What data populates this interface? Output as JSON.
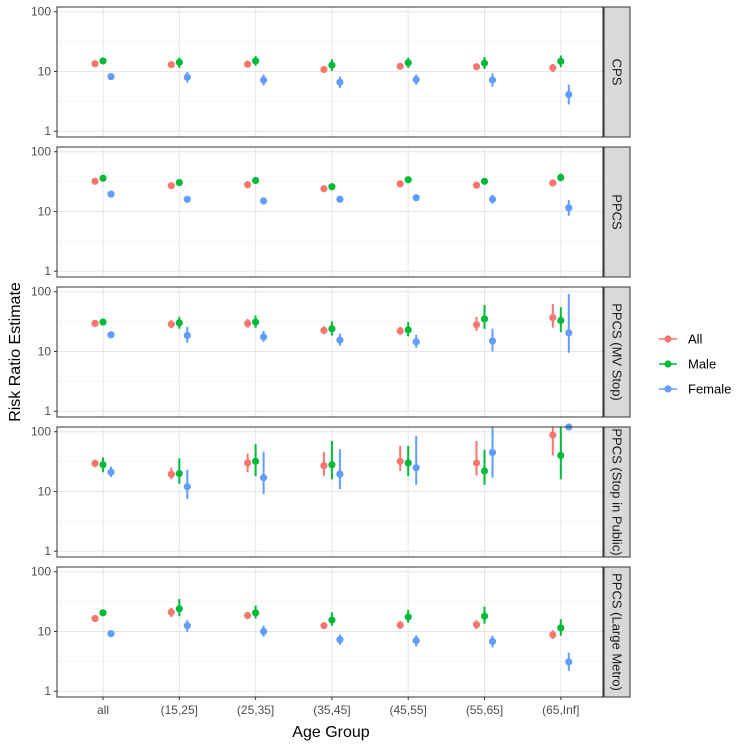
{
  "chart_data": {
    "type": "scatter",
    "subtype": "point-range, faceted",
    "xlabel": "Age Group",
    "ylabel": "Risk Ratio Estimate",
    "yscale": "log10",
    "ylim": [
      0.8,
      120
    ],
    "yticks": [
      1,
      10,
      100
    ],
    "ytick_labels": [
      "1",
      "10",
      "100"
    ],
    "categories": [
      "all",
      "(15,25]",
      "(25,35]",
      "(35,45]",
      "(45,55]",
      "(55,65]",
      "(65,Inf]"
    ],
    "legend": {
      "position": "right",
      "entries": [
        {
          "name": "All",
          "color": "#F8766D"
        },
        {
          "name": "Male",
          "color": "#00BA38"
        },
        {
          "name": "Female",
          "color": "#619CFF"
        }
      ]
    },
    "facets": [
      {
        "label": "CPS",
        "series": [
          {
            "name": "All",
            "values": [
              13.5,
              13,
              13.2,
              10.8,
              12.2,
              12,
              11.5
            ],
            "lower": [
              12.5,
              11.8,
              12.2,
              9.5,
              11,
              10.5,
              9.8
            ],
            "upper": [
              14.5,
              14.3,
              14.3,
              12.2,
              13.4,
              13.5,
              13.3
            ]
          },
          {
            "name": "Male",
            "values": [
              15,
              14.2,
              15,
              12.8,
              14,
              13.8,
              14.8
            ],
            "lower": [
              14,
              11.5,
              12.5,
              10.2,
              11.5,
              11,
              11.8
            ],
            "upper": [
              16,
              17,
              18,
              16,
              17,
              17.5,
              18.5
            ]
          },
          {
            "name": "Female",
            "values": [
              8.2,
              8,
              7.2,
              6.6,
              7.3,
              7.2,
              4.1
            ],
            "lower": [
              7.6,
              6.5,
              5.8,
              5.3,
              6,
              5.6,
              2.8
            ],
            "upper": [
              8.9,
              9.8,
              8.9,
              8.2,
              8.9,
              9.3,
              6
            ]
          }
        ]
      },
      {
        "label": "PPCS",
        "series": [
          {
            "name": "All",
            "values": [
              32,
              27,
              28,
              24,
              29,
              27.5,
              30
            ],
            "lower": [
              30,
              25.5,
              26,
              22,
              27,
              25,
              27
            ],
            "upper": [
              34,
              28.5,
              30,
              26,
              31,
              30,
              33
            ]
          },
          {
            "name": "Male",
            "values": [
              36,
              30.5,
              33,
              26,
              34,
              32,
              37
            ],
            "lower": [
              33.5,
              28.5,
              31,
              24,
              32,
              30,
              32
            ],
            "upper": [
              38.5,
              32.5,
              35,
              28,
              36,
              34,
              43
            ]
          },
          {
            "name": "Female",
            "values": [
              19.5,
              16,
              15,
              16,
              17,
              16,
              11.5
            ],
            "lower": [
              18.5,
              15,
              14,
              15,
              16,
              13.5,
              8.5
            ],
            "upper": [
              20.5,
              17,
              16,
              17,
              18,
              19,
              15.5
            ]
          }
        ]
      },
      {
        "label": "PPCS (MV Stop)",
        "series": [
          {
            "name": "All",
            "values": [
              29.5,
              28.5,
              29.5,
              22.5,
              22,
              28,
              37
            ],
            "lower": [
              27.5,
              24.5,
              25,
              19.5,
              19,
              22,
              25
            ],
            "upper": [
              31.5,
              33.5,
              35,
              26.5,
              26,
              38,
              62
            ]
          },
          {
            "name": "Male",
            "values": [
              31,
              30,
              31,
              24,
              23,
              35,
              33
            ],
            "lower": [
              29,
              24,
              25,
              18.5,
              18,
              24,
              21
            ],
            "upper": [
              33,
              38,
              40,
              32,
              31,
              60,
              55
            ]
          },
          {
            "name": "Female",
            "values": [
              19,
              18.5,
              17.5,
              15.5,
              14.5,
              15,
              20.5
            ],
            "lower": [
              17.5,
              14,
              14.5,
              12.5,
              11.5,
              10,
              9.5
            ],
            "upper": [
              20.5,
              26,
              22,
              20,
              19,
              24,
              92
            ]
          }
        ]
      },
      {
        "label": "PPCS (Stop in Public)",
        "series": [
          {
            "name": "All",
            "values": [
              29.5,
              19.5,
              30,
              27,
              32,
              30,
              88
            ],
            "lower": [
              25.5,
              16,
              21,
              18,
              22,
              18.5,
              40
            ],
            "upper": [
              34,
              25,
              43,
              46,
              58,
              70,
              120
            ]
          },
          {
            "name": "Male",
            "values": [
              28,
              20,
              32,
              28,
              30,
              22,
              40
            ],
            "lower": [
              21,
              13.5,
              18,
              16,
              18,
              13,
              16
            ],
            "upper": [
              37,
              36,
              62,
              70,
              58,
              50,
              120
            ]
          },
          {
            "name": "Female",
            "values": [
              21,
              12,
              17,
              19.5,
              25,
              45,
              120
            ],
            "lower": [
              17.5,
              7.5,
              9,
              11,
              13,
              17,
              110
            ],
            "upper": [
              26,
              23,
              46,
              51,
              85,
              120,
              120
            ]
          }
        ]
      },
      {
        "label": "PPCS (Large Metro)",
        "series": [
          {
            "name": "All",
            "values": [
              16.5,
              21,
              18.5,
              12.5,
              12.8,
              13,
              8.8
            ],
            "lower": [
              15.5,
              17.5,
              16,
              11,
              11,
              11,
              7.5
            ],
            "upper": [
              17.5,
              25,
              21,
              14,
              14.8,
              15.5,
              10.5
            ]
          },
          {
            "name": "Male",
            "values": [
              20.5,
              24,
              20.5,
              15.5,
              17.5,
              18,
              11.5
            ],
            "lower": [
              19.5,
              18,
              16.5,
              12.5,
              14,
              13.5,
              8.5
            ],
            "upper": [
              21.5,
              35,
              27,
              21,
              23,
              26,
              16
            ]
          },
          {
            "name": "Female",
            "values": [
              9.2,
              12.5,
              10,
              7.3,
              7,
              6.8,
              3.1
            ],
            "lower": [
              8.7,
              9.8,
              8.2,
              6,
              5.6,
              5.4,
              2.2
            ],
            "upper": [
              9.7,
              15.5,
              12.5,
              8.9,
              8.6,
              8.5,
              4.4
            ]
          }
        ]
      }
    ]
  }
}
